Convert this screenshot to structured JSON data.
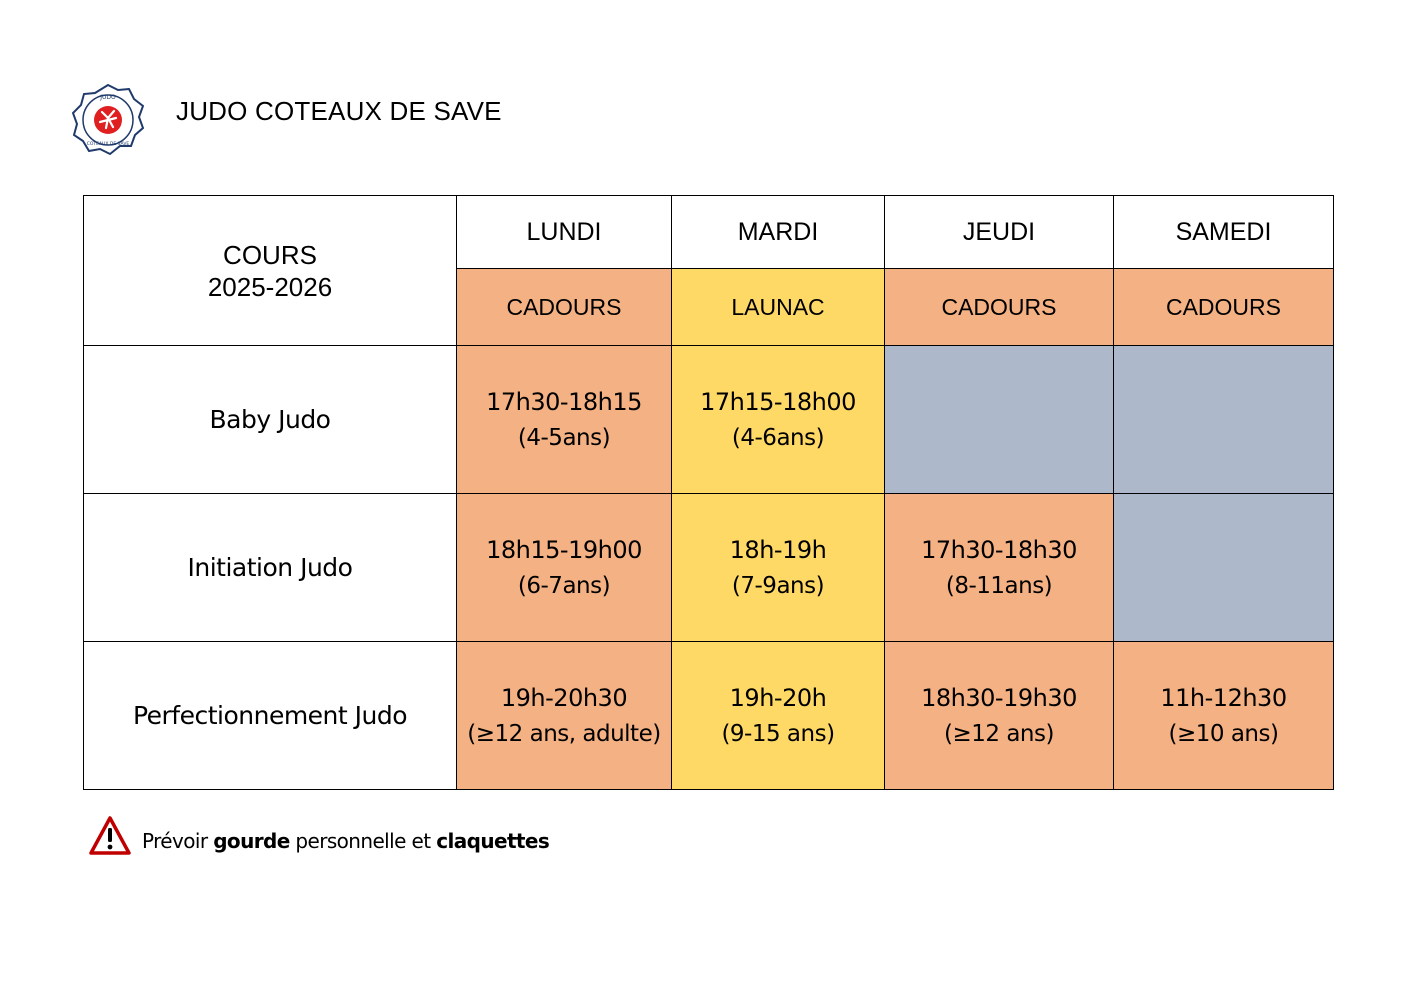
{
  "header": {
    "logo": {
      "icon": "judo-club-logo-icon",
      "top_text": "JUDO",
      "bottom_text": "COTEAUX DE SAVE"
    },
    "title": "JUDO COTEAUX DE SAVE"
  },
  "table": {
    "corner_line1": "COURS",
    "corner_line2": "2025-2026",
    "days": [
      {
        "name": "LUNDI",
        "venue": "CADOURS"
      },
      {
        "name": "MARDI",
        "venue": "LAUNAC"
      },
      {
        "name": "JEUDI",
        "venue": "CADOURS"
      },
      {
        "name": "SAMEDI",
        "venue": "CADOURS"
      }
    ],
    "rows": [
      {
        "label": "Baby Judo",
        "cells": [
          {
            "time": "17h30-18h15",
            "age": "(4-5ans)"
          },
          {
            "time": "17h15-18h00",
            "age": "(4-6ans)"
          },
          {
            "time": "",
            "age": ""
          },
          {
            "time": "",
            "age": ""
          }
        ]
      },
      {
        "label": "Initiation Judo",
        "cells": [
          {
            "time": "18h15-19h00",
            "age": "(6-7ans)"
          },
          {
            "time": "18h-19h",
            "age": "(7-9ans)"
          },
          {
            "time": "17h30-18h30",
            "age": "(8-11ans)"
          },
          {
            "time": "",
            "age": ""
          }
        ]
      },
      {
        "label": "Perfectionnement Judo",
        "cells": [
          {
            "time": "19h-20h30",
            "age": "(≥12 ans, adulte)"
          },
          {
            "time": "19h-20h",
            "age": "(9-15 ans)"
          },
          {
            "time": "18h30-19h30",
            "age": "(≥12 ans)"
          },
          {
            "time": "11h-12h30",
            "age": "(≥10 ans)"
          }
        ]
      }
    ]
  },
  "note": {
    "icon": "warning-icon",
    "part1": "Prévoir ",
    "bold1": "gourde",
    "part2": " personnelle et ",
    "bold2": "claquettes"
  },
  "colors": {
    "cadours": "#f4b183",
    "launac": "#ffd966",
    "no_class": "#adb9ca",
    "warning": "#c00000",
    "logo_red": "#e02020",
    "logo_navy": "#1f3a6b"
  }
}
